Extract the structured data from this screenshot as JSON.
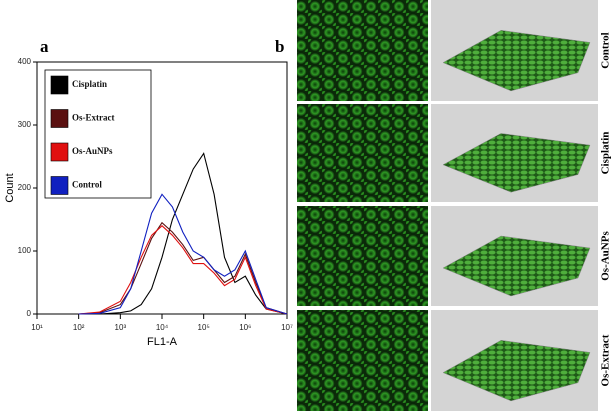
{
  "chart_data": {
    "type": "line",
    "panel_labels": [
      "a",
      "b"
    ],
    "xlabel": "FL1-A",
    "ylabel": "Count",
    "xscale": "log",
    "xlim": [
      10,
      10000000
    ],
    "xticks": [
      {
        "value": 10,
        "label": "10¹"
      },
      {
        "value": 100,
        "label": "10²"
      },
      {
        "value": 1000,
        "label": "10³"
      },
      {
        "value": 10000,
        "label": "10⁴"
      },
      {
        "value": 100000,
        "label": "10⁵"
      },
      {
        "value": 1000000,
        "label": "10⁶"
      },
      {
        "value": 10000000,
        "label": "10⁷"
      }
    ],
    "ylim": [
      0,
      400
    ],
    "yticks": [
      0,
      100,
      200,
      300,
      400
    ],
    "x": [
      100,
      316,
      1000,
      1778,
      3162,
      5623,
      10000,
      17783,
      31623,
      56234,
      100000,
      177828,
      316228,
      562341,
      1000000,
      1778279,
      3162278,
      10000000
    ],
    "series": [
      {
        "name": "Cisplatin",
        "color": "#000000",
        "values": [
          0,
          0,
          2,
          5,
          15,
          40,
          90,
          150,
          190,
          230,
          255,
          190,
          90,
          50,
          60,
          30,
          8,
          0
        ]
      },
      {
        "name": "Os-Extract",
        "color": "#5a1010",
        "values": [
          0,
          2,
          15,
          40,
          80,
          120,
          145,
          130,
          110,
          85,
          90,
          70,
          50,
          60,
          95,
          50,
          10,
          0
        ]
      },
      {
        "name": "Os-AuNPs",
        "color": "#e01010",
        "values": [
          0,
          3,
          20,
          50,
          90,
          125,
          140,
          125,
          105,
          80,
          80,
          65,
          45,
          55,
          90,
          45,
          8,
          0
        ]
      },
      {
        "name": "Control",
        "color": "#1020c0",
        "values": [
          0,
          1,
          10,
          40,
          100,
          160,
          190,
          170,
          130,
          100,
          90,
          70,
          60,
          70,
          100,
          55,
          10,
          0
        ]
      }
    ],
    "image_rows": [
      "Control",
      "Cisplatin",
      "Os-AuNPs",
      "Os-Extract"
    ]
  }
}
